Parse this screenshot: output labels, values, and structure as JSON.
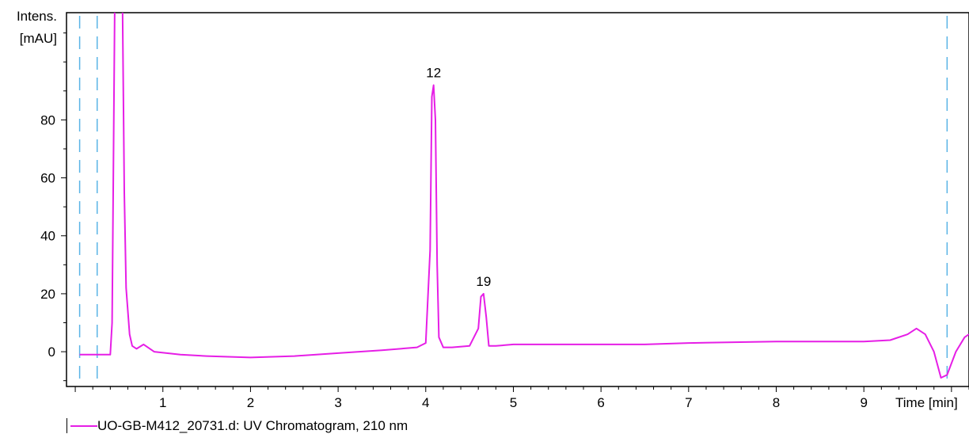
{
  "chart_data": {
    "type": "line",
    "ylabel_line1": "Intens.",
    "ylabel_line2": "[mAU]",
    "xlabel": "Time [min]",
    "xlim": [
      -0.1,
      10.2
    ],
    "ylim": [
      -12,
      117
    ],
    "x_ticks": [
      "1",
      "2",
      "3",
      "4",
      "5",
      "6",
      "7",
      "8",
      "9"
    ],
    "x_tick_values": [
      1,
      2,
      3,
      4,
      5,
      6,
      7,
      8,
      9
    ],
    "y_ticks": [
      "0",
      "20",
      "40",
      "60",
      "80"
    ],
    "y_tick_values": [
      0,
      20,
      40,
      60,
      80
    ],
    "marker_lines_min": [
      0.05,
      0.25,
      9.95
    ],
    "series": [
      {
        "name": "UO-GB-M412_20731.d: UV Chromatogram, 210 nm",
        "color": "#e61ee6",
        "x": [
          0.05,
          0.08,
          0.4,
          0.42,
          0.45,
          0.5,
          0.52,
          0.54,
          0.56,
          0.58,
          0.62,
          0.65,
          0.7,
          0.78,
          0.9,
          1.2,
          1.5,
          2.0,
          2.5,
          3.0,
          3.5,
          3.9,
          4.0,
          4.05,
          4.07,
          4.09,
          4.11,
          4.13,
          4.15,
          4.2,
          4.3,
          4.5,
          4.6,
          4.63,
          4.66,
          4.69,
          4.72,
          4.8,
          5.0,
          5.5,
          6.0,
          6.5,
          7.0,
          8.0,
          9.0,
          9.3,
          9.5,
          9.6,
          9.7,
          9.8,
          9.88,
          9.95,
          10.05,
          10.15,
          10.2
        ],
        "y": [
          -1,
          -1,
          -1,
          10,
          118,
          118,
          118,
          118,
          55,
          22,
          6,
          2,
          1,
          2.5,
          0,
          -1,
          -1.5,
          -2,
          -1.5,
          -0.5,
          0.5,
          1.5,
          3,
          35,
          88,
          92,
          80,
          30,
          5,
          1.5,
          1.5,
          2,
          8,
          19,
          20,
          12,
          2,
          2,
          2.5,
          2.5,
          2.5,
          2.5,
          3,
          3.5,
          3.5,
          4,
          6,
          8,
          6,
          0,
          -9,
          -8,
          0,
          5,
          6
        ]
      }
    ],
    "annotations": [
      {
        "text": "12",
        "x": 4.09,
        "y": 92
      },
      {
        "text": "19",
        "x": 4.66,
        "y": 20
      }
    ]
  },
  "legend": {
    "label": "UO-GB-M412_20731.d: UV Chromatogram, 210 nm"
  }
}
